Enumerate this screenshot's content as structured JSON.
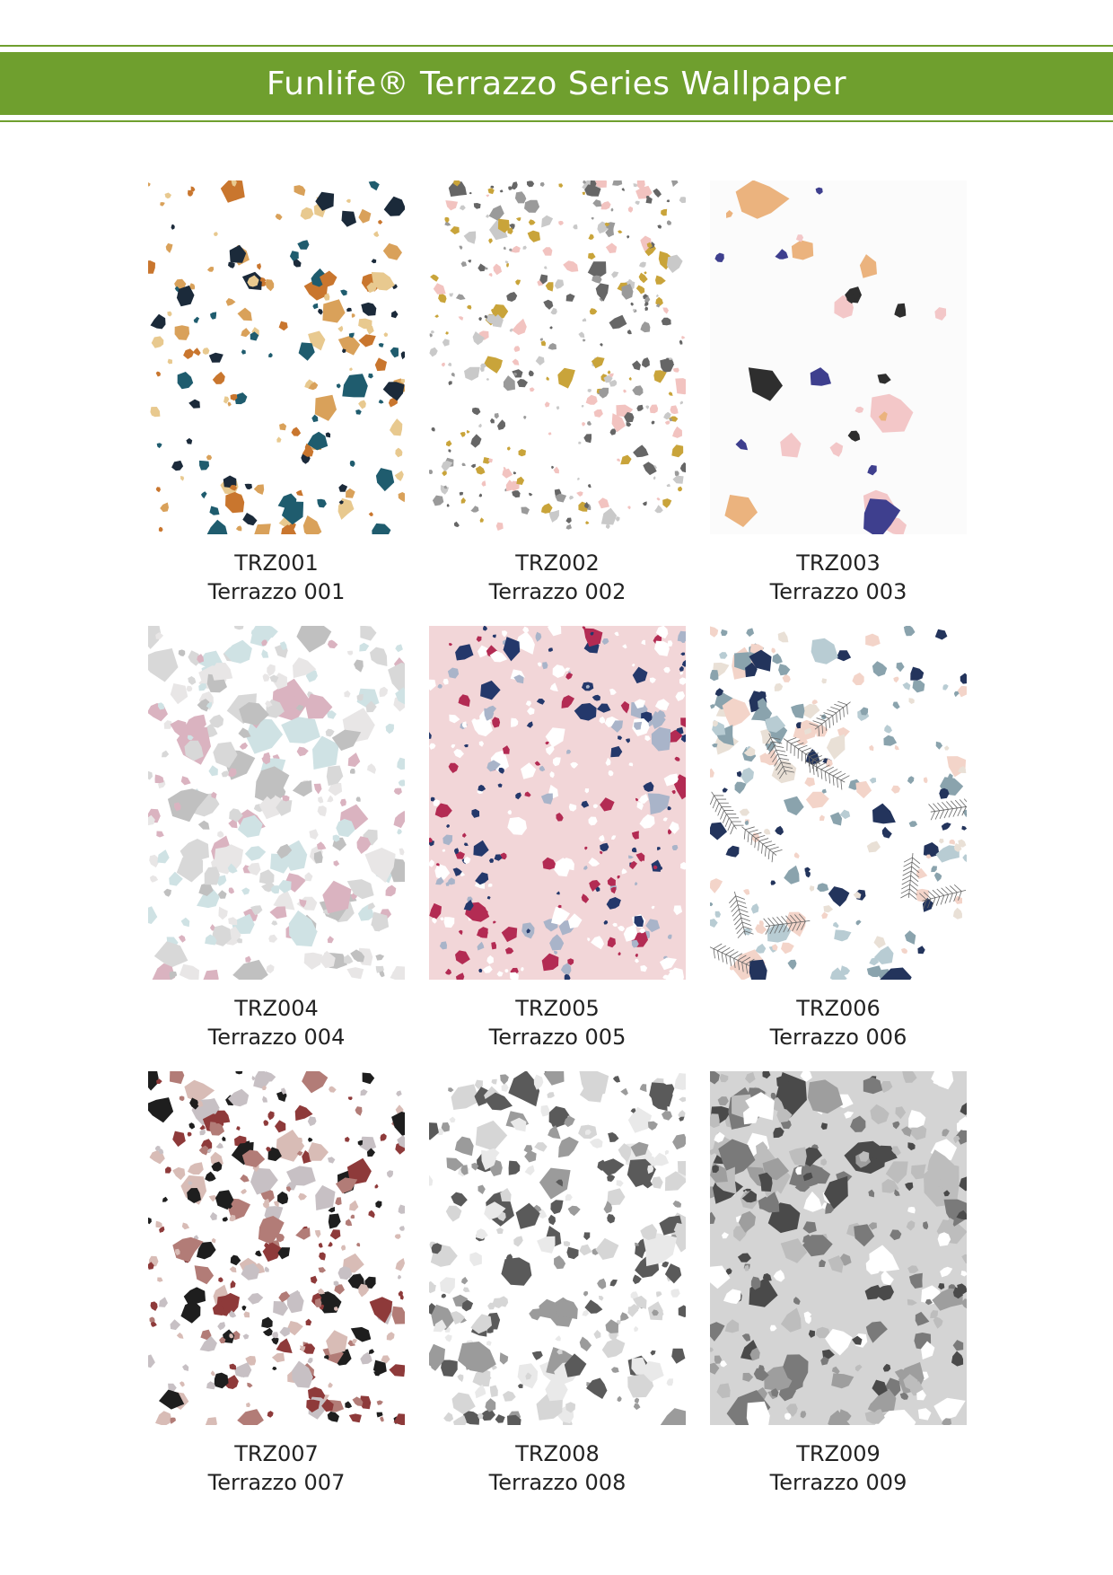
{
  "header": {
    "title": "Funlife® Terrazzo Series Wallpaper"
  },
  "products": [
    {
      "code": "TRZ001",
      "name": "Terrazzo 001"
    },
    {
      "code": "TRZ002",
      "name": "Terrazzo 002"
    },
    {
      "code": "TRZ003",
      "name": "Terrazzo 003"
    },
    {
      "code": "TRZ004",
      "name": "Terrazzo 004"
    },
    {
      "code": "TRZ005",
      "name": "Terrazzo 005"
    },
    {
      "code": "TRZ006",
      "name": "Terrazzo 006"
    },
    {
      "code": "TRZ007",
      "name": "Terrazzo 007"
    },
    {
      "code": "TRZ008",
      "name": "Terrazzo 008"
    },
    {
      "code": "TRZ009",
      "name": "Terrazzo 009"
    }
  ]
}
